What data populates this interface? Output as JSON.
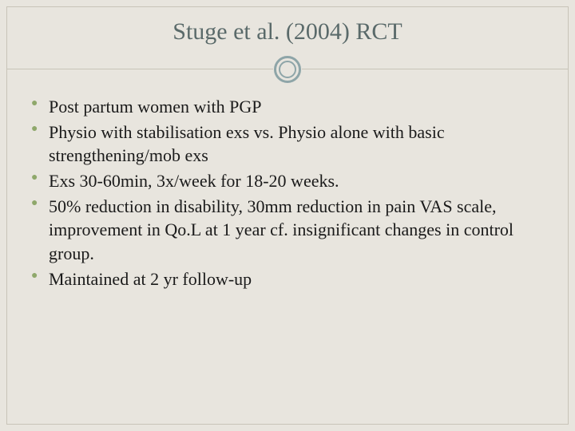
{
  "slide": {
    "title": "Stuge et al. (2004) RCT",
    "title_color": "#5a6a6a",
    "title_fontsize": 30,
    "background_color": "#e8e5de",
    "frame_border_color": "#c8c4b8",
    "divider_ring_color": "#8ea5a8",
    "bullet_color": "#8fa86b",
    "body_fontsize": 22,
    "body_color": "#1a1a1a",
    "bullets": [
      "Post partum women with PGP",
      "Physio with stabilisation exs vs. Physio alone with basic strengthening/mob exs",
      "Exs 30-60min, 3x/week for 18-20 weeks.",
      "50% reduction in disability, 30mm reduction in pain VAS scale, improvement in Qo.L at 1 year cf. insignificant changes in control group.",
      "Maintained at 2 yr follow-up"
    ]
  }
}
